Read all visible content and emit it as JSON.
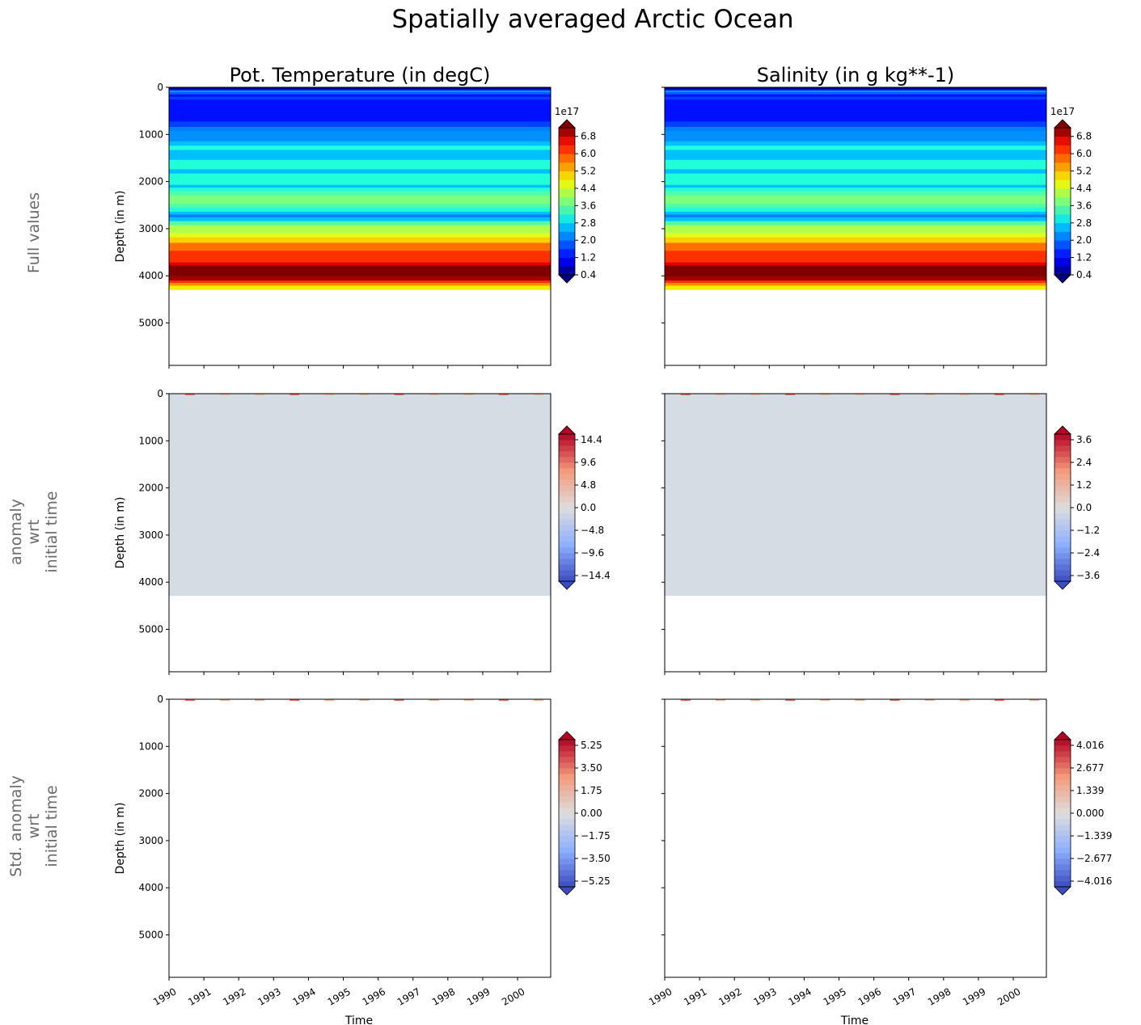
{
  "title": "Spatially averaged Arctic Ocean",
  "columns": [
    "Pot. Temperature (in degC)",
    "Salinity (in g kg**-1)"
  ],
  "rows": [
    {
      "label": [
        "Full values"
      ]
    },
    {
      "label": [
        "anomaly",
        "wrt",
        "initial time"
      ]
    },
    {
      "label": [
        "Std. anomaly",
        "wrt",
        "initial time"
      ]
    }
  ],
  "chart_data": {
    "type": "heatmap",
    "xlabel": "Time",
    "ylabel": "Depth (in m)",
    "xticks": [
      "1990",
      "1991",
      "1992",
      "1993",
      "1994",
      "1995",
      "1996",
      "1997",
      "1998",
      "1999",
      "2000"
    ],
    "xlim": [
      1990,
      2000.95
    ],
    "yticks": [
      "0",
      "1000",
      "2000",
      "3000",
      "4000",
      "5000"
    ],
    "ylim": [
      5900,
      0
    ],
    "full_values_profile": [
      [
        0,
        40,
        "#000090"
      ],
      [
        40,
        70,
        "#0020ff"
      ],
      [
        70,
        100,
        "#00a0ff"
      ],
      [
        100,
        150,
        "#0060ff"
      ],
      [
        150,
        200,
        "#0010ff"
      ],
      [
        200,
        260,
        "#0040ff"
      ],
      [
        260,
        410,
        "#0010ff"
      ],
      [
        410,
        725,
        "#0010ff"
      ],
      [
        725,
        840,
        "#0040ff"
      ],
      [
        840,
        925,
        "#0080ff"
      ],
      [
        925,
        1150,
        "#0090ff"
      ],
      [
        1150,
        1240,
        "#00c0ff"
      ],
      [
        1240,
        1330,
        "#20ffe0"
      ],
      [
        1330,
        1540,
        "#00c0ff"
      ],
      [
        1540,
        1740,
        "#20ffd8"
      ],
      [
        1740,
        1830,
        "#00c0ff"
      ],
      [
        1830,
        2070,
        "#20ffd8"
      ],
      [
        2070,
        2130,
        "#00c0ff"
      ],
      [
        2130,
        2200,
        "#20ffd8"
      ],
      [
        2200,
        2300,
        "#50ffa8"
      ],
      [
        2300,
        2470,
        "#7fff80"
      ],
      [
        2470,
        2550,
        "#50ffa8"
      ],
      [
        2550,
        2640,
        "#20ffd8"
      ],
      [
        2640,
        2700,
        "#00c0ff"
      ],
      [
        2700,
        2760,
        "#0080ff"
      ],
      [
        2760,
        2840,
        "#00c0ff"
      ],
      [
        2840,
        2925,
        "#50ffa8"
      ],
      [
        2925,
        3085,
        "#b0ff50"
      ],
      [
        3085,
        3180,
        "#e0ff20"
      ],
      [
        3180,
        3300,
        "#ffd000"
      ],
      [
        3300,
        3470,
        "#ff7000"
      ],
      [
        3470,
        3715,
        "#ff3000"
      ],
      [
        3715,
        3780,
        "#e00000"
      ],
      [
        3780,
        4010,
        "#800000"
      ],
      [
        4010,
        4100,
        "#a00000"
      ],
      [
        4100,
        4150,
        "#ff3000"
      ],
      [
        4150,
        4210,
        "#ff9000"
      ],
      [
        4210,
        4290,
        "#f0f000"
      ]
    ],
    "anomaly_fill": {
      "depth_max": 4290,
      "color": "#d5dce4"
    },
    "panels": [
      {
        "row": 0,
        "col": 0,
        "cmap": "jet",
        "colorbar": {
          "offset": "1e17",
          "vmin": 0.4,
          "vmax": 7.2,
          "ticks": [
            "6.8",
            "6.0",
            "5.2",
            "4.4",
            "3.6",
            "2.8",
            "2.0",
            "1.2",
            "0.4"
          ],
          "tickvals": [
            6.8,
            6.0,
            5.2,
            4.4,
            3.6,
            2.8,
            2.0,
            1.2,
            0.4
          ],
          "levels": 17
        }
      },
      {
        "row": 0,
        "col": 1,
        "cmap": "jet",
        "colorbar": {
          "offset": "1e17",
          "vmin": 0.4,
          "vmax": 7.2,
          "ticks": [
            "6.8",
            "6.0",
            "5.2",
            "4.4",
            "3.6",
            "2.8",
            "2.0",
            "1.2",
            "0.4"
          ],
          "tickvals": [
            6.8,
            6.0,
            5.2,
            4.4,
            3.6,
            2.8,
            2.0,
            1.2,
            0.4
          ],
          "levels": 17
        }
      },
      {
        "row": 1,
        "col": 0,
        "cmap": "coolwarm",
        "colorbar": {
          "vmin": -15.6,
          "vmax": 15.6,
          "ticks": [
            "14.4",
            "9.6",
            "4.8",
            "0.0",
            "−4.8",
            "−9.6",
            "−14.4"
          ],
          "tickvals": [
            14.4,
            9.6,
            4.8,
            0,
            -4.8,
            -9.6,
            -14.4
          ],
          "levels": 26
        }
      },
      {
        "row": 1,
        "col": 1,
        "cmap": "coolwarm",
        "colorbar": {
          "vmin": -3.9,
          "vmax": 3.9,
          "ticks": [
            "3.6",
            "2.4",
            "1.2",
            "0.0",
            "−1.2",
            "−2.4",
            "−3.6"
          ],
          "tickvals": [
            3.6,
            2.4,
            1.2,
            0,
            -1.2,
            -2.4,
            -3.6
          ],
          "levels": 26
        }
      },
      {
        "row": 2,
        "col": 0,
        "cmap": "coolwarm",
        "colorbar": {
          "vmin": -5.69,
          "vmax": 5.69,
          "ticks": [
            "5.25",
            "3.50",
            "1.75",
            "0.00",
            "−1.75",
            "−3.50",
            "−5.25"
          ],
          "tickvals": [
            5.25,
            3.5,
            1.75,
            0,
            -1.75,
            -3.5,
            -5.25
          ],
          "levels": 26
        }
      },
      {
        "row": 2,
        "col": 1,
        "cmap": "coolwarm",
        "colorbar": {
          "vmin": -4.35,
          "vmax": 4.35,
          "ticks": [
            "4.016",
            "2.677",
            "1.339",
            "0.000",
            "−1.339",
            "−2.677",
            "−4.016"
          ],
          "tickvals": [
            4.016,
            2.677,
            1.339,
            0,
            -1.339,
            -2.677,
            -4.016
          ],
          "levels": 26
        }
      }
    ]
  }
}
